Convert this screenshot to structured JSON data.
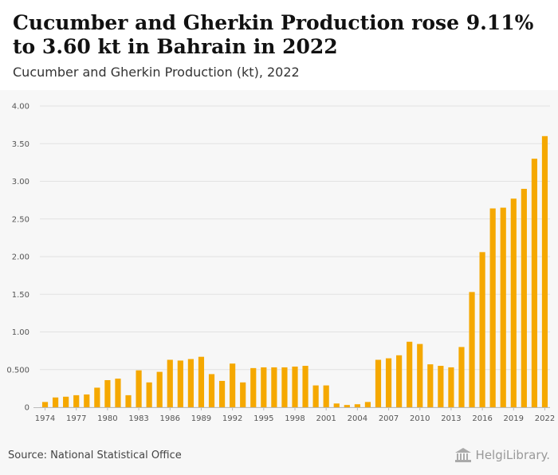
{
  "title": "Cucumber and Gherkin Production rose 9.11% to 3.60 kt in Bahrain in 2022",
  "subtitle": "Cucumber and Gherkin Production (kt), 2022",
  "source": "Source: National Statistical Office",
  "logo_text": "HelgiLibrary.",
  "colors": {
    "bar": "#f5a800",
    "grid": "#e2e2e2",
    "axis": "#bbbbbb"
  },
  "chart_data": {
    "type": "bar",
    "title": "Cucumber and Gherkin Production rose 9.11% to 3.60 kt in Bahrain in 2022",
    "subtitle": "Cucumber and Gherkin Production (kt), 2022",
    "ylim": [
      0,
      4.0
    ],
    "y_ticks": [
      "0",
      "0.500",
      "1.00",
      "1.50",
      "2.00",
      "2.50",
      "3.00",
      "3.50",
      "4.00"
    ],
    "y_tick_values": [
      0,
      0.5,
      1.0,
      1.5,
      2.0,
      2.5,
      3.0,
      3.5,
      4.0
    ],
    "x_tick_labels": [
      "1974",
      "1977",
      "1980",
      "1983",
      "1986",
      "1989",
      "1992",
      "1995",
      "1998",
      "2001",
      "2004",
      "2007",
      "2010",
      "2013",
      "2016",
      "2019",
      "2022"
    ],
    "grid": true,
    "categories": [
      "1974",
      "1975",
      "1976",
      "1977",
      "1978",
      "1979",
      "1980",
      "1981",
      "1982",
      "1983",
      "1984",
      "1985",
      "1986",
      "1987",
      "1988",
      "1989",
      "1990",
      "1991",
      "1992",
      "1993",
      "1994",
      "1995",
      "1996",
      "1997",
      "1998",
      "1999",
      "2000",
      "2001",
      "2002",
      "2003",
      "2004",
      "2005",
      "2006",
      "2007",
      "2008",
      "2009",
      "2010",
      "2011",
      "2012",
      "2013",
      "2014",
      "2015",
      "2016",
      "2017",
      "2018",
      "2019",
      "2020",
      "2021",
      "2022"
    ],
    "values": [
      0.07,
      0.13,
      0.14,
      0.16,
      0.17,
      0.26,
      0.36,
      0.38,
      0.16,
      0.49,
      0.33,
      0.47,
      0.63,
      0.62,
      0.64,
      0.67,
      0.44,
      0.35,
      0.58,
      0.33,
      0.52,
      0.53,
      0.53,
      0.53,
      0.54,
      0.55,
      0.29,
      0.29,
      0.05,
      0.03,
      0.04,
      0.07,
      0.63,
      0.65,
      0.69,
      0.87,
      0.84,
      0.57,
      0.55,
      0.53,
      0.8,
      1.53,
      2.06,
      2.64,
      2.65,
      2.77,
      2.9,
      3.3,
      3.6
    ]
  }
}
